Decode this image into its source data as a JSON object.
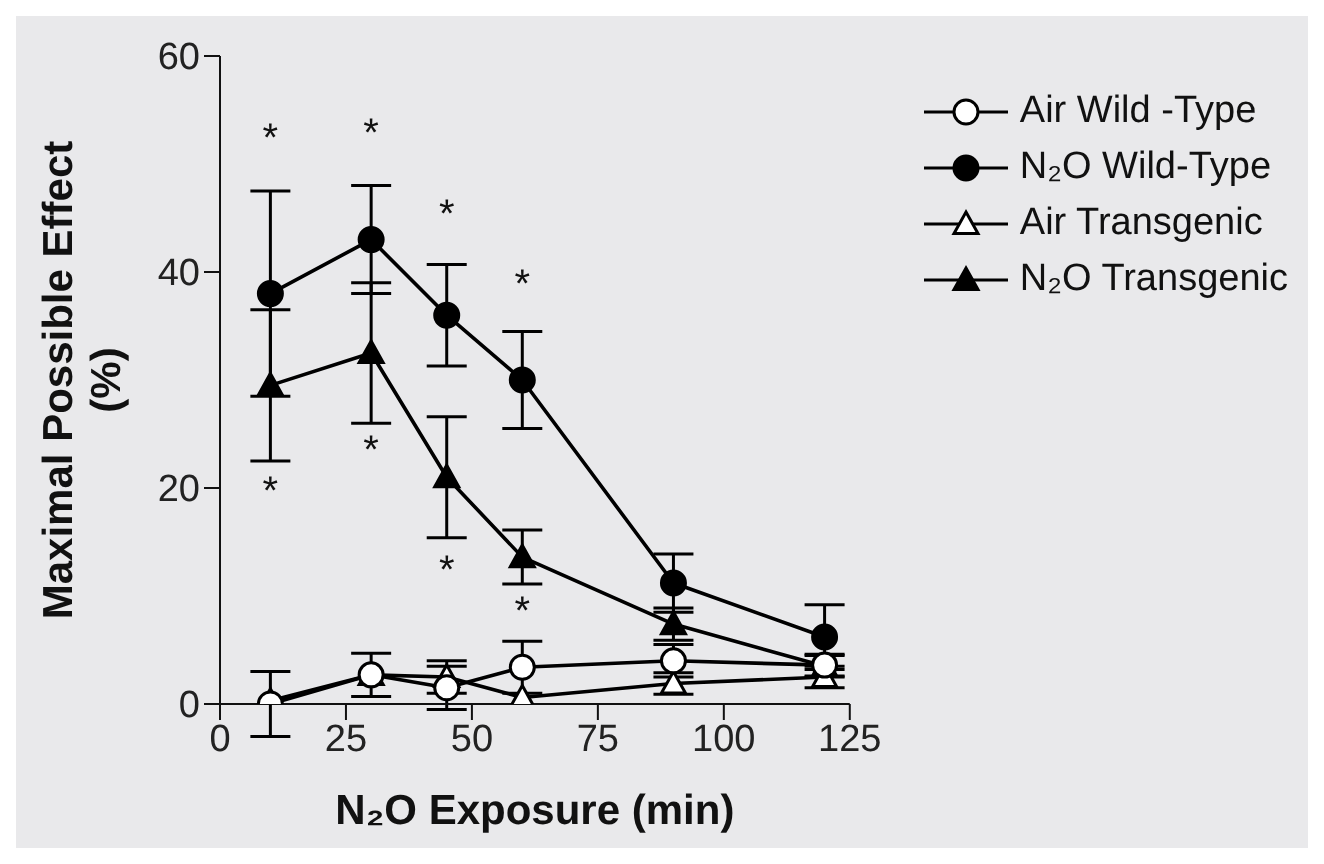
{
  "chart_data": {
    "type": "line",
    "xlabel": "N₂O Exposure (min)",
    "ylabel": "Maximal Possible Effect\n(%)",
    "x": [
      10,
      30,
      45,
      60,
      90,
      120
    ],
    "series": [
      {
        "name": "Air Wild -Type",
        "color": "#000000",
        "marker": "circle-open",
        "values": [
          0,
          2.7,
          1.5,
          3.4,
          4,
          3.6
        ],
        "errors": [
          3,
          2,
          2,
          2.4,
          1.5,
          1
        ]
      },
      {
        "name": "N₂O Wild-Type",
        "color": "#000000",
        "marker": "circle",
        "values": [
          38,
          43,
          36,
          30,
          11.2,
          6.2
        ],
        "errors": [
          9.5,
          5,
          4.7,
          4.5,
          2.7,
          3
        ]
      },
      {
        "name": "Air Transgenic",
        "color": "#000000",
        "marker": "triangle-open",
        "values": [
          0.3,
          2.7,
          2.5,
          0.6,
          1.9,
          2.5
        ],
        "errors": [
          null,
          null,
          1.5,
          null,
          1,
          1
        ]
      },
      {
        "name": "N₂O Transgenic",
        "color": "#000000",
        "marker": "triangle",
        "values": [
          29.5,
          32.5,
          21,
          13.6,
          7.4,
          3.5
        ],
        "errors": [
          7,
          6.5,
          5.6,
          2.5,
          1.5,
          1
        ]
      }
    ],
    "xlim": [
      0,
      125
    ],
    "xticks": [
      0,
      25,
      50,
      75,
      100,
      125
    ],
    "ylim": [
      0,
      60
    ],
    "yticks": [
      0,
      20,
      40,
      60
    ],
    "legend": "top right",
    "line_style": "solid",
    "annotations": [
      "*",
      "*",
      "*",
      "*",
      "*",
      "*",
      "*",
      "*"
    ]
  }
}
